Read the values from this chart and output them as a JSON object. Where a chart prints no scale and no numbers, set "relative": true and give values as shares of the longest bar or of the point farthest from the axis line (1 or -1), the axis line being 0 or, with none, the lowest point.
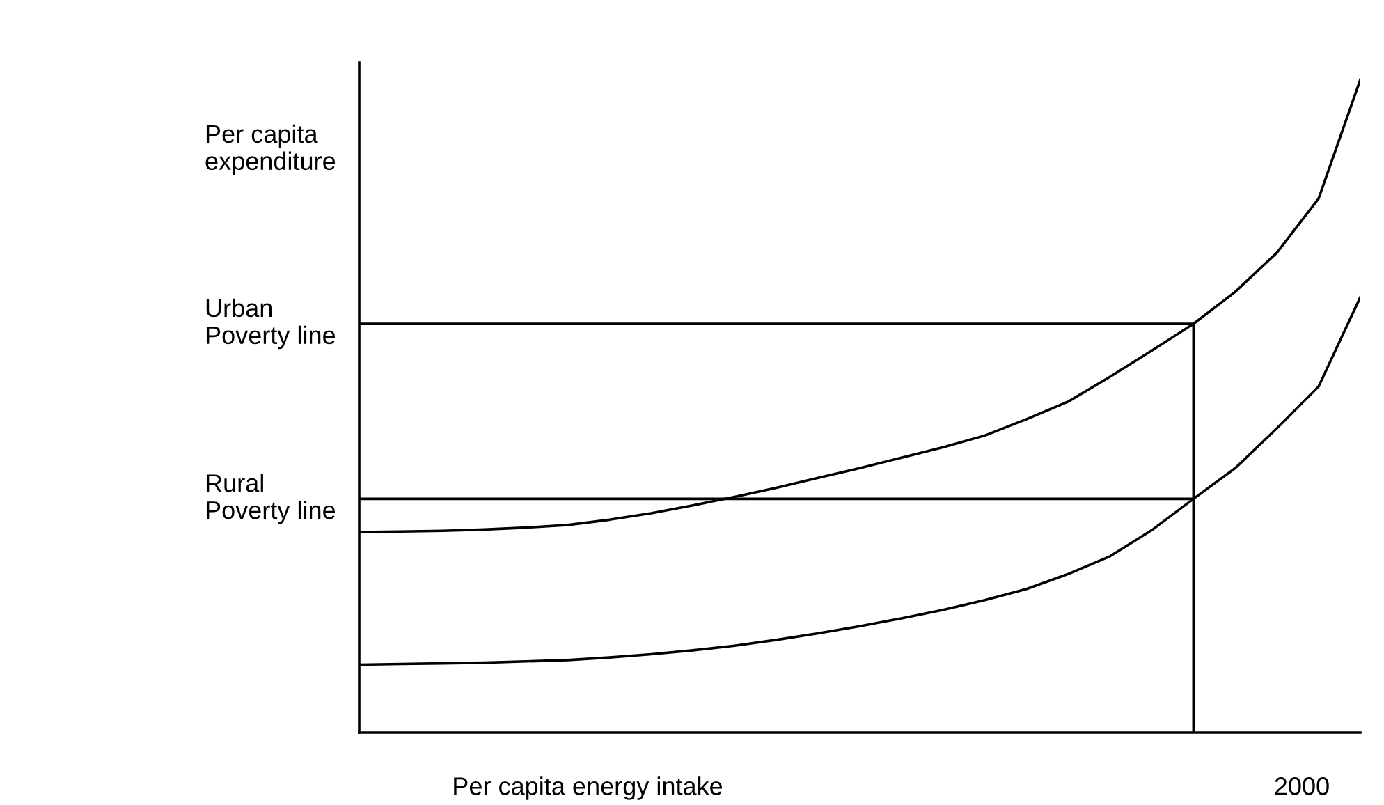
{
  "chart_data": {
    "type": "line",
    "relative": true,
    "ylabel": "Per capita\nexpenditure",
    "xlabel": "Per capita energy intake",
    "categories": [
      null,
      null,
      null,
      null,
      null,
      null,
      null,
      null,
      null,
      null,
      null,
      null,
      null,
      null,
      null,
      null,
      null,
      null,
      null,
      null,
      null,
      null,
      null,
      null,
      null
    ],
    "annotations": [
      "2000"
    ],
    "series": [
      {
        "color": "#000000",
        "values": [
          0.307,
          0.308,
          0.309,
          0.311,
          0.314,
          0.318,
          0.326,
          0.336,
          0.348,
          0.361,
          0.375,
          0.39,
          0.405,
          0.421,
          0.437,
          0.455,
          0.48,
          0.507,
          0.545,
          0.585,
          0.626,
          0.675,
          0.735,
          0.818,
          1.0
        ]
      },
      {
        "color": "#000000",
        "values": [
          0.104,
          0.105,
          0.106,
          0.107,
          0.109,
          0.111,
          0.115,
          0.12,
          0.126,
          0.133,
          0.142,
          0.152,
          0.163,
          0.175,
          0.188,
          0.203,
          0.22,
          0.243,
          0.27,
          0.31,
          0.358,
          0.405,
          0.466,
          0.53,
          0.667
        ]
      }
    ],
    "ref_lines": [
      {
        "axis": "y",
        "value": 0.626,
        "label": "Urban\nPoverty line",
        "color": "#000000"
      },
      {
        "axis": "y",
        "value": 0.358,
        "label": "Rural\nPoverty line",
        "color": "#000000"
      }
    ],
    "marker": "none",
    "line_style": "solid"
  }
}
